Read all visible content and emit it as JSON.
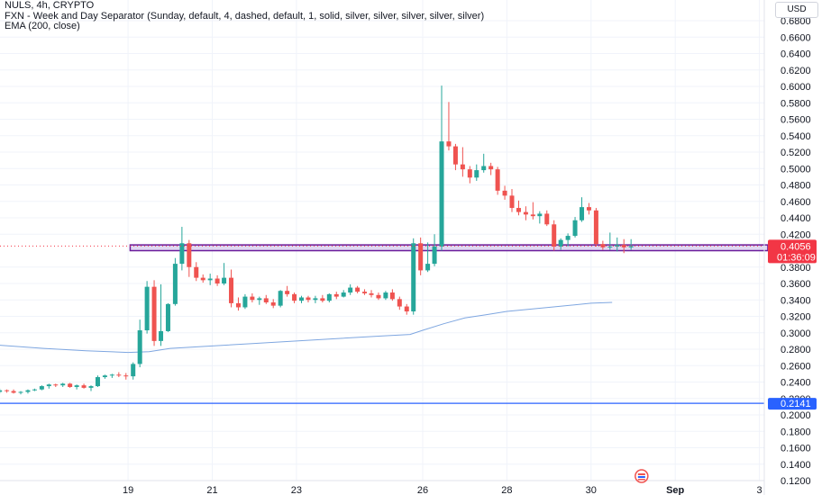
{
  "legend": {
    "symbol": "NULS, 4h, CRYPTO",
    "indicator1": "FXN - Week and Day Separator (Sunday, default, 4, dashed, default, 1, solid, silver, silver, silver, silver, silver)",
    "indicator2": "EMA (200, close)"
  },
  "currency_button": "USD",
  "colors": {
    "up": "#26a69a",
    "down": "#ef5350",
    "ema": "#7ea6e0",
    "support_line": "#2962ff",
    "zone_border": "#6a1b9a",
    "zone_fill": "#c5b8e6",
    "price_label_bg": "#f23645",
    "support_label_bg": "#2962ff"
  },
  "chart_data": {
    "type": "candlestick",
    "y_ticks": [
      "0.6800",
      "0.6600",
      "0.6400",
      "0.6200",
      "0.6000",
      "0.5800",
      "0.5600",
      "0.5400",
      "0.5200",
      "0.5000",
      "0.4800",
      "0.4600",
      "0.4400",
      "0.4200",
      "0.3800",
      "0.3600",
      "0.3400",
      "0.3200",
      "0.3000",
      "0.2800",
      "0.2600",
      "0.2400",
      "0.2200",
      "0.2000",
      "0.1800",
      "0.1600",
      "0.1400",
      "0.1200"
    ],
    "y_tick_values": [
      0.68,
      0.66,
      0.64,
      0.62,
      0.6,
      0.58,
      0.56,
      0.54,
      0.52,
      0.5,
      0.48,
      0.46,
      0.44,
      0.42,
      0.38,
      0.36,
      0.34,
      0.32,
      0.3,
      0.28,
      0.26,
      0.24,
      0.22,
      0.2,
      0.18,
      0.16,
      0.14,
      0.12
    ],
    "ylim": [
      0.12,
      0.69
    ],
    "x_ticks": [
      "19",
      "21",
      "23",
      "26",
      "28",
      "30",
      "Sep",
      "3"
    ],
    "x_tick_bold": [
      "Sep"
    ],
    "x_tick_days": [
      19,
      21,
      23,
      26,
      28,
      30,
      32,
      34
    ],
    "xlim": [
      15.9,
      35.05
    ],
    "current_price": "0.4056",
    "current_price_value": 0.4056,
    "countdown": "01:36:09",
    "support_price": "0.2141",
    "support_value": 0.2141,
    "zone": {
      "low": 0.4,
      "high": 0.407,
      "from_day": 19.05,
      "to_day": 34.2
    },
    "ema_points": [
      [
        15.9,
        0.285
      ],
      [
        17.0,
        0.281
      ],
      [
        18.0,
        0.278
      ],
      [
        19.0,
        0.276
      ],
      [
        19.5,
        0.277
      ],
      [
        20.0,
        0.281
      ],
      [
        21.0,
        0.284
      ],
      [
        22.0,
        0.287
      ],
      [
        23.0,
        0.29
      ],
      [
        24.0,
        0.293
      ],
      [
        25.0,
        0.296
      ],
      [
        25.7,
        0.298
      ],
      [
        26.0,
        0.303
      ],
      [
        26.5,
        0.311
      ],
      [
        27.0,
        0.318
      ],
      [
        27.5,
        0.322
      ],
      [
        28.0,
        0.326
      ],
      [
        29.0,
        0.331
      ],
      [
        30.0,
        0.336
      ],
      [
        30.5,
        0.337
      ]
    ],
    "candles": [
      {
        "day": 15.95,
        "o": 0.228,
        "h": 0.232,
        "l": 0.226,
        "c": 0.23
      },
      {
        "day": 16.12,
        "o": 0.23,
        "h": 0.231,
        "l": 0.227,
        "c": 0.229
      },
      {
        "day": 16.28,
        "o": 0.229,
        "h": 0.231,
        "l": 0.226,
        "c": 0.227
      },
      {
        "day": 16.45,
        "o": 0.227,
        "h": 0.229,
        "l": 0.225,
        "c": 0.228
      },
      {
        "day": 16.62,
        "o": 0.228,
        "h": 0.231,
        "l": 0.226,
        "c": 0.23
      },
      {
        "day": 16.78,
        "o": 0.23,
        "h": 0.232,
        "l": 0.229,
        "c": 0.231
      },
      {
        "day": 16.95,
        "o": 0.231,
        "h": 0.236,
        "l": 0.23,
        "c": 0.235
      },
      {
        "day": 17.12,
        "o": 0.235,
        "h": 0.238,
        "l": 0.232,
        "c": 0.237
      },
      {
        "day": 17.28,
        "o": 0.237,
        "h": 0.238,
        "l": 0.234,
        "c": 0.236
      },
      {
        "day": 17.45,
        "o": 0.236,
        "h": 0.239,
        "l": 0.234,
        "c": 0.238
      },
      {
        "day": 17.62,
        "o": 0.238,
        "h": 0.239,
        "l": 0.233,
        "c": 0.234
      },
      {
        "day": 17.78,
        "o": 0.234,
        "h": 0.237,
        "l": 0.231,
        "c": 0.236
      },
      {
        "day": 17.95,
        "o": 0.236,
        "h": 0.238,
        "l": 0.232,
        "c": 0.233
      },
      {
        "day": 18.12,
        "o": 0.233,
        "h": 0.236,
        "l": 0.229,
        "c": 0.235
      },
      {
        "day": 18.28,
        "o": 0.235,
        "h": 0.248,
        "l": 0.234,
        "c": 0.246
      },
      {
        "day": 18.45,
        "o": 0.246,
        "h": 0.249,
        "l": 0.244,
        "c": 0.248
      },
      {
        "day": 18.62,
        "o": 0.248,
        "h": 0.25,
        "l": 0.245,
        "c": 0.249
      },
      {
        "day": 18.78,
        "o": 0.249,
        "h": 0.252,
        "l": 0.246,
        "c": 0.248
      },
      {
        "day": 18.95,
        "o": 0.248,
        "h": 0.251,
        "l": 0.243,
        "c": 0.247
      },
      {
        "day": 19.12,
        "o": 0.247,
        "h": 0.264,
        "l": 0.243,
        "c": 0.262
      },
      {
        "day": 19.28,
        "o": 0.262,
        "h": 0.316,
        "l": 0.258,
        "c": 0.303
      },
      {
        "day": 19.45,
        "o": 0.303,
        "h": 0.363,
        "l": 0.299,
        "c": 0.356
      },
      {
        "day": 19.62,
        "o": 0.356,
        "h": 0.364,
        "l": 0.284,
        "c": 0.29
      },
      {
        "day": 19.78,
        "o": 0.29,
        "h": 0.359,
        "l": 0.284,
        "c": 0.302
      },
      {
        "day": 19.95,
        "o": 0.302,
        "h": 0.336,
        "l": 0.301,
        "c": 0.335
      },
      {
        "day": 20.12,
        "o": 0.335,
        "h": 0.391,
        "l": 0.333,
        "c": 0.384
      },
      {
        "day": 20.28,
        "o": 0.384,
        "h": 0.429,
        "l": 0.376,
        "c": 0.409
      },
      {
        "day": 20.45,
        "o": 0.409,
        "h": 0.413,
        "l": 0.368,
        "c": 0.38
      },
      {
        "day": 20.62,
        "o": 0.38,
        "h": 0.386,
        "l": 0.363,
        "c": 0.367
      },
      {
        "day": 20.78,
        "o": 0.367,
        "h": 0.371,
        "l": 0.361,
        "c": 0.364
      },
      {
        "day": 20.95,
        "o": 0.364,
        "h": 0.372,
        "l": 0.358,
        "c": 0.366
      },
      {
        "day": 21.12,
        "o": 0.366,
        "h": 0.37,
        "l": 0.357,
        "c": 0.36
      },
      {
        "day": 21.28,
        "o": 0.36,
        "h": 0.385,
        "l": 0.358,
        "c": 0.367
      },
      {
        "day": 21.45,
        "o": 0.367,
        "h": 0.377,
        "l": 0.331,
        "c": 0.336
      },
      {
        "day": 21.62,
        "o": 0.336,
        "h": 0.343,
        "l": 0.327,
        "c": 0.331
      },
      {
        "day": 21.78,
        "o": 0.331,
        "h": 0.347,
        "l": 0.329,
        "c": 0.344
      },
      {
        "day": 21.95,
        "o": 0.344,
        "h": 0.348,
        "l": 0.337,
        "c": 0.34
      },
      {
        "day": 22.12,
        "o": 0.34,
        "h": 0.344,
        "l": 0.334,
        "c": 0.342
      },
      {
        "day": 22.28,
        "o": 0.342,
        "h": 0.346,
        "l": 0.335,
        "c": 0.337
      },
      {
        "day": 22.45,
        "o": 0.337,
        "h": 0.341,
        "l": 0.33,
        "c": 0.333
      },
      {
        "day": 22.62,
        "o": 0.333,
        "h": 0.352,
        "l": 0.331,
        "c": 0.351
      },
      {
        "day": 22.78,
        "o": 0.351,
        "h": 0.357,
        "l": 0.344,
        "c": 0.347
      },
      {
        "day": 22.95,
        "o": 0.347,
        "h": 0.349,
        "l": 0.336,
        "c": 0.339
      },
      {
        "day": 23.12,
        "o": 0.339,
        "h": 0.345,
        "l": 0.336,
        "c": 0.343
      },
      {
        "day": 23.28,
        "o": 0.343,
        "h": 0.345,
        "l": 0.337,
        "c": 0.34
      },
      {
        "day": 23.45,
        "o": 0.34,
        "h": 0.345,
        "l": 0.336,
        "c": 0.342
      },
      {
        "day": 23.62,
        "o": 0.342,
        "h": 0.346,
        "l": 0.337,
        "c": 0.339
      },
      {
        "day": 23.78,
        "o": 0.339,
        "h": 0.348,
        "l": 0.337,
        "c": 0.347
      },
      {
        "day": 23.95,
        "o": 0.347,
        "h": 0.35,
        "l": 0.341,
        "c": 0.344
      },
      {
        "day": 24.12,
        "o": 0.344,
        "h": 0.352,
        "l": 0.343,
        "c": 0.349
      },
      {
        "day": 24.28,
        "o": 0.349,
        "h": 0.359,
        "l": 0.346,
        "c": 0.355
      },
      {
        "day": 24.45,
        "o": 0.355,
        "h": 0.357,
        "l": 0.348,
        "c": 0.35
      },
      {
        "day": 24.62,
        "o": 0.35,
        "h": 0.353,
        "l": 0.346,
        "c": 0.348
      },
      {
        "day": 24.78,
        "o": 0.348,
        "h": 0.352,
        "l": 0.343,
        "c": 0.346
      },
      {
        "day": 24.95,
        "o": 0.346,
        "h": 0.349,
        "l": 0.34,
        "c": 0.342
      },
      {
        "day": 25.12,
        "o": 0.342,
        "h": 0.351,
        "l": 0.34,
        "c": 0.349
      },
      {
        "day": 25.28,
        "o": 0.349,
        "h": 0.353,
        "l": 0.339,
        "c": 0.341
      },
      {
        "day": 25.45,
        "o": 0.341,
        "h": 0.344,
        "l": 0.328,
        "c": 0.332
      },
      {
        "day": 25.62,
        "o": 0.332,
        "h": 0.335,
        "l": 0.322,
        "c": 0.326
      },
      {
        "day": 25.78,
        "o": 0.326,
        "h": 0.415,
        "l": 0.322,
        "c": 0.409
      },
      {
        "day": 25.95,
        "o": 0.409,
        "h": 0.416,
        "l": 0.37,
        "c": 0.376
      },
      {
        "day": 26.12,
        "o": 0.376,
        "h": 0.41,
        "l": 0.374,
        "c": 0.384
      },
      {
        "day": 26.28,
        "o": 0.384,
        "h": 0.42,
        "l": 0.381,
        "c": 0.405
      },
      {
        "day": 26.45,
        "o": 0.405,
        "h": 0.601,
        "l": 0.4,
        "c": 0.533
      },
      {
        "day": 26.62,
        "o": 0.533,
        "h": 0.581,
        "l": 0.522,
        "c": 0.527
      },
      {
        "day": 26.78,
        "o": 0.527,
        "h": 0.53,
        "l": 0.498,
        "c": 0.505
      },
      {
        "day": 26.95,
        "o": 0.505,
        "h": 0.526,
        "l": 0.49,
        "c": 0.499
      },
      {
        "day": 27.12,
        "o": 0.499,
        "h": 0.503,
        "l": 0.482,
        "c": 0.489
      },
      {
        "day": 27.28,
        "o": 0.489,
        "h": 0.505,
        "l": 0.485,
        "c": 0.498
      },
      {
        "day": 27.45,
        "o": 0.498,
        "h": 0.518,
        "l": 0.495,
        "c": 0.503
      },
      {
        "day": 27.62,
        "o": 0.503,
        "h": 0.507,
        "l": 0.492,
        "c": 0.499
      },
      {
        "day": 27.78,
        "o": 0.499,
        "h": 0.502,
        "l": 0.468,
        "c": 0.473
      },
      {
        "day": 27.95,
        "o": 0.473,
        "h": 0.479,
        "l": 0.462,
        "c": 0.467
      },
      {
        "day": 28.12,
        "o": 0.467,
        "h": 0.475,
        "l": 0.447,
        "c": 0.452
      },
      {
        "day": 28.28,
        "o": 0.452,
        "h": 0.461,
        "l": 0.443,
        "c": 0.447
      },
      {
        "day": 28.45,
        "o": 0.447,
        "h": 0.454,
        "l": 0.437,
        "c": 0.444
      },
      {
        "day": 28.62,
        "o": 0.444,
        "h": 0.459,
        "l": 0.438,
        "c": 0.442
      },
      {
        "day": 28.78,
        "o": 0.442,
        "h": 0.448,
        "l": 0.433,
        "c": 0.445
      },
      {
        "day": 28.95,
        "o": 0.445,
        "h": 0.449,
        "l": 0.43,
        "c": 0.432
      },
      {
        "day": 29.12,
        "o": 0.432,
        "h": 0.437,
        "l": 0.4,
        "c": 0.405
      },
      {
        "day": 29.28,
        "o": 0.405,
        "h": 0.415,
        "l": 0.401,
        "c": 0.413
      },
      {
        "day": 29.45,
        "o": 0.413,
        "h": 0.421,
        "l": 0.405,
        "c": 0.418
      },
      {
        "day": 29.62,
        "o": 0.418,
        "h": 0.441,
        "l": 0.416,
        "c": 0.437
      },
      {
        "day": 29.78,
        "o": 0.437,
        "h": 0.465,
        "l": 0.435,
        "c": 0.453
      },
      {
        "day": 29.95,
        "o": 0.453,
        "h": 0.458,
        "l": 0.444,
        "c": 0.449
      },
      {
        "day": 30.12,
        "o": 0.449,
        "h": 0.452,
        "l": 0.405,
        "c": 0.408
      },
      {
        "day": 30.28,
        "o": 0.408,
        "h": 0.412,
        "l": 0.401,
        "c": 0.404
      },
      {
        "day": 30.45,
        "o": 0.404,
        "h": 0.422,
        "l": 0.401,
        "c": 0.405
      },
      {
        "day": 30.62,
        "o": 0.405,
        "h": 0.416,
        "l": 0.399,
        "c": 0.407
      },
      {
        "day": 30.78,
        "o": 0.407,
        "h": 0.414,
        "l": 0.397,
        "c": 0.404
      },
      {
        "day": 30.95,
        "o": 0.404,
        "h": 0.414,
        "l": 0.401,
        "c": 0.4056
      }
    ]
  }
}
